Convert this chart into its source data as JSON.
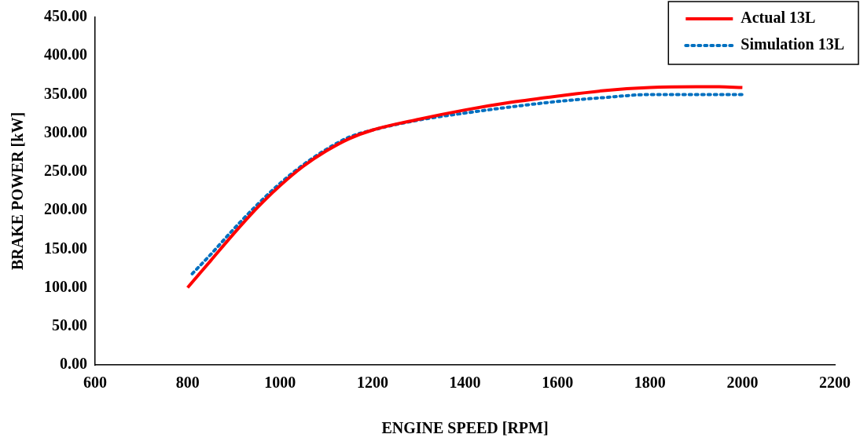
{
  "chart_data": {
    "type": "line",
    "xlabel": "ENGINE SPEED [RPM]",
    "ylabel": "BRAKE POWER [kW]",
    "xlim": [
      600,
      2200
    ],
    "xticks": [
      600,
      800,
      1000,
      1200,
      1400,
      1600,
      1800,
      2000,
      2200
    ],
    "ylim": [
      0,
      450
    ],
    "yticks": [
      {
        "value": 0,
        "label": "0.00"
      },
      {
        "value": 50,
        "label": "50.00"
      },
      {
        "value": 100,
        "label": "100.00"
      },
      {
        "value": 150,
        "label": "150.00"
      },
      {
        "value": 200,
        "label": "200.00"
      },
      {
        "value": 250,
        "label": "250.00"
      },
      {
        "value": 300,
        "label": "300.00"
      },
      {
        "value": 350,
        "label": "350.00"
      },
      {
        "value": 400,
        "label": "400.00"
      },
      {
        "value": 450,
        "label": "450.00"
      }
    ],
    "grid": false,
    "legend": "top right",
    "marker": "none",
    "series": [
      {
        "name": "Actual 13L",
        "color": "#ff0000",
        "line_style": "solid",
        "x": [
          800,
          850,
          900,
          950,
          1000,
          1050,
          1100,
          1150,
          1200,
          1300,
          1400,
          1500,
          1600,
          1700,
          1800,
          1900,
          1950,
          2000
        ],
        "values": [
          100,
          135,
          170,
          203,
          232,
          257,
          277,
          293,
          304,
          318,
          330,
          340,
          348,
          355,
          359,
          360,
          360,
          359
        ]
      },
      {
        "name": "Simulation 13L",
        "color": "#0070c0",
        "line_style": "dotted",
        "x": [
          810,
          850,
          900,
          950,
          1000,
          1050,
          1100,
          1150,
          1200,
          1300,
          1400,
          1500,
          1600,
          1700,
          1800,
          1900,
          2000
        ],
        "values": [
          118,
          143,
          176,
          207,
          235,
          259,
          279,
          295,
          304,
          317,
          326,
          334,
          341,
          346,
          350,
          350,
          350
        ]
      }
    ]
  }
}
